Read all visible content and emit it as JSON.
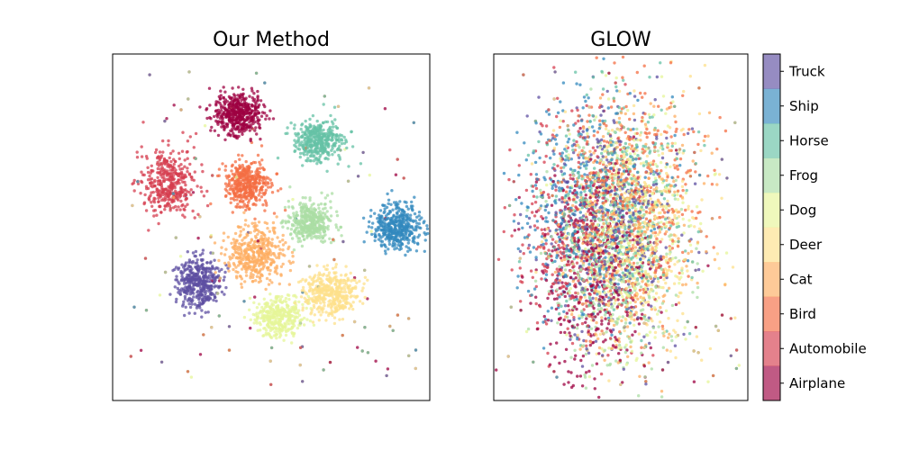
{
  "chart_data": [
    {
      "type": "scatter",
      "title": "Our Method",
      "xlabel": "",
      "ylabel": "",
      "grid": false,
      "axis_ticks": false,
      "layout": "well-separated clusters",
      "series": [
        {
          "name": "Airplane",
          "color": "#9e0142",
          "center": [
            -0.25,
            0.78
          ],
          "spread": [
            0.09,
            0.07
          ],
          "n": 480
        },
        {
          "name": "Automobile",
          "color": "#d53e4f",
          "center": [
            -0.77,
            0.3
          ],
          "spread": [
            0.1,
            0.12
          ],
          "n": 420
        },
        {
          "name": "Bird",
          "color": "#f46d43",
          "center": [
            -0.18,
            0.3
          ],
          "spread": [
            0.09,
            0.08
          ],
          "n": 430
        },
        {
          "name": "Cat",
          "color": "#fdae61",
          "center": [
            -0.12,
            -0.2
          ],
          "spread": [
            0.11,
            0.1
          ],
          "n": 420
        },
        {
          "name": "Deer",
          "color": "#fee08b",
          "center": [
            0.45,
            -0.47
          ],
          "spread": [
            0.1,
            0.08
          ],
          "n": 420
        },
        {
          "name": "Dog",
          "color": "#e6f598",
          "center": [
            0.06,
            -0.62
          ],
          "spread": [
            0.09,
            0.07
          ],
          "n": 380
        },
        {
          "name": "Frog",
          "color": "#abdda4",
          "center": [
            0.3,
            0.03
          ],
          "spread": [
            0.08,
            0.07
          ],
          "n": 420
        },
        {
          "name": "Horse",
          "color": "#66c2a5",
          "center": [
            0.36,
            0.6
          ],
          "spread": [
            0.1,
            0.07
          ],
          "n": 420
        },
        {
          "name": "Ship",
          "color": "#3288bd",
          "center": [
            0.95,
            -0.01
          ],
          "spread": [
            0.09,
            0.08
          ],
          "n": 420
        },
        {
          "name": "Truck",
          "color": "#5e4fa2",
          "center": [
            -0.55,
            -0.4
          ],
          "spread": [
            0.08,
            0.09
          ],
          "n": 420
        }
      ]
    },
    {
      "type": "scatter",
      "title": "GLOW",
      "xlabel": "",
      "ylabel": "",
      "grid": false,
      "axis_ticks": false,
      "layout": "heavily overlapping single blob",
      "series": [
        {
          "name": "Airplane",
          "color": "#9e0142",
          "center": [
            -0.25,
            -0.3
          ],
          "spread": [
            0.3,
            0.4
          ],
          "n": 420
        },
        {
          "name": "Automobile",
          "color": "#d53e4f",
          "center": [
            -0.4,
            -0.1
          ],
          "spread": [
            0.3,
            0.4
          ],
          "n": 380
        },
        {
          "name": "Bird",
          "color": "#f46d43",
          "center": [
            0.1,
            0.15
          ],
          "spread": [
            0.32,
            0.4
          ],
          "n": 400
        },
        {
          "name": "Cat",
          "color": "#fdae61",
          "center": [
            0.05,
            -0.05
          ],
          "spread": [
            0.32,
            0.42
          ],
          "n": 400
        },
        {
          "name": "Deer",
          "color": "#fee08b",
          "center": [
            0.15,
            -0.1
          ],
          "spread": [
            0.32,
            0.42
          ],
          "n": 400
        },
        {
          "name": "Dog",
          "color": "#e6f598",
          "center": [
            0.1,
            0.0
          ],
          "spread": [
            0.32,
            0.42
          ],
          "n": 380
        },
        {
          "name": "Frog",
          "color": "#abdda4",
          "center": [
            -0.05,
            -0.25
          ],
          "spread": [
            0.3,
            0.4
          ],
          "n": 380
        },
        {
          "name": "Horse",
          "color": "#66c2a5",
          "center": [
            -0.1,
            0.05
          ],
          "spread": [
            0.32,
            0.4
          ],
          "n": 380
        },
        {
          "name": "Ship",
          "color": "#3288bd",
          "center": [
            -0.3,
            0.1
          ],
          "spread": [
            0.32,
            0.4
          ],
          "n": 380
        },
        {
          "name": "Truck",
          "color": "#5e4fa2",
          "center": [
            -0.1,
            0.0
          ],
          "spread": [
            0.32,
            0.42
          ],
          "n": 420
        }
      ]
    }
  ],
  "colorbar": {
    "labels": [
      "Airplane",
      "Automobile",
      "Bird",
      "Cat",
      "Deer",
      "Dog",
      "Frog",
      "Horse",
      "Ship",
      "Truck"
    ],
    "colors": [
      "#9e0142",
      "#d53e4f",
      "#f46d43",
      "#fdae61",
      "#fee08b",
      "#e6f598",
      "#abdda4",
      "#66c2a5",
      "#3288bd",
      "#5e4fa2"
    ]
  }
}
